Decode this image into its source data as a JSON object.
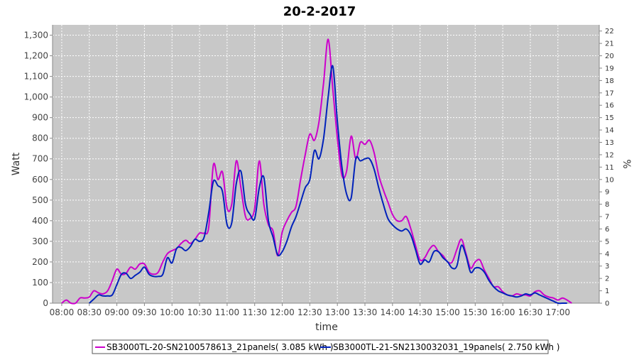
{
  "chart_data": {
    "type": "line",
    "title": "20-2-2017",
    "xlabel": "time",
    "ylabel": "Watt",
    "y2label": "%",
    "xlim": [
      "07:50",
      "17:45"
    ],
    "ylim": [
      0,
      1350
    ],
    "y2lim": [
      0,
      22.5
    ],
    "x_ticks": [
      "08:00",
      "08:30",
      "09:00",
      "09:30",
      "10:00",
      "10:30",
      "11:00",
      "11:30",
      "12:00",
      "12:30",
      "13:00",
      "13:30",
      "14:00",
      "14:30",
      "15:00",
      "15:30",
      "16:00",
      "16:30",
      "17:00"
    ],
    "y_ticks": [
      0,
      100,
      200,
      300,
      400,
      500,
      600,
      700,
      800,
      900,
      1000,
      1100,
      1200,
      1300
    ],
    "y_tick_labels": [
      "0",
      "100",
      "200",
      "300",
      "400",
      "500",
      "600",
      "700",
      "800",
      "900",
      "1,000",
      "1,100",
      "1,200",
      "1,300"
    ],
    "y2_ticks": [
      0,
      1,
      2,
      3,
      4,
      5,
      6,
      7,
      8,
      9,
      10,
      11,
      12,
      13,
      14,
      15,
      16,
      17,
      18,
      19,
      20,
      21,
      22
    ],
    "grid": true,
    "legend_position": "bottom",
    "series": [
      {
        "name": "SB3000TL-20-SN2100578613_21panels( 3.085 kWh )",
        "color": "#cc00cc",
        "x": [
          "08:00",
          "08:05",
          "08:10",
          "08:15",
          "08:20",
          "08:25",
          "08:30",
          "08:35",
          "08:40",
          "08:45",
          "08:50",
          "08:55",
          "09:00",
          "09:05",
          "09:10",
          "09:15",
          "09:20",
          "09:25",
          "09:30",
          "09:35",
          "09:40",
          "09:45",
          "09:50",
          "09:55",
          "10:00",
          "10:05",
          "10:10",
          "10:15",
          "10:20",
          "10:25",
          "10:30",
          "10:35",
          "10:40",
          "10:45",
          "10:50",
          "10:55",
          "11:00",
          "11:05",
          "11:10",
          "11:15",
          "11:20",
          "11:25",
          "11:30",
          "11:35",
          "11:40",
          "11:45",
          "11:50",
          "11:55",
          "12:00",
          "12:05",
          "12:10",
          "12:15",
          "12:20",
          "12:25",
          "12:30",
          "12:35",
          "12:40",
          "12:45",
          "12:50",
          "12:55",
          "13:00",
          "13:05",
          "13:10",
          "13:15",
          "13:20",
          "13:25",
          "13:30",
          "13:35",
          "13:40",
          "13:45",
          "13:50",
          "13:55",
          "14:00",
          "14:05",
          "14:10",
          "14:15",
          "14:20",
          "14:25",
          "14:30",
          "14:35",
          "14:40",
          "14:45",
          "14:50",
          "14:55",
          "15:00",
          "15:05",
          "15:10",
          "15:15",
          "15:20",
          "15:25",
          "15:30",
          "15:35",
          "15:40",
          "15:45",
          "15:50",
          "15:55",
          "16:00",
          "16:05",
          "16:10",
          "16:15",
          "16:20",
          "16:25",
          "16:30",
          "16:35",
          "16:40",
          "16:45",
          "16:50",
          "16:55",
          "17:00",
          "17:05",
          "17:10",
          "17:15"
        ],
        "values": [
          0,
          15,
          0,
          0,
          25,
          25,
          30,
          60,
          50,
          45,
          60,
          110,
          165,
          140,
          145,
          175,
          165,
          190,
          190,
          150,
          140,
          150,
          200,
          240,
          255,
          265,
          290,
          305,
          290,
          310,
          340,
          340,
          370,
          670,
          600,
          635,
          460,
          480,
          690,
          560,
          420,
          410,
          460,
          690,
          480,
          380,
          350,
          230,
          345,
          400,
          440,
          470,
          600,
          720,
          820,
          790,
          880,
          1070,
          1280,
          1040,
          800,
          620,
          640,
          810,
          700,
          780,
          770,
          790,
          730,
          620,
          550,
          490,
          430,
          400,
          400,
          420,
          360,
          280,
          210,
          220,
          260,
          280,
          250,
          230,
          200,
          200,
          260,
          310,
          240,
          170,
          200,
          210,
          160,
          120,
          80,
          80,
          55,
          40,
          35,
          45,
          40,
          40,
          35,
          55,
          60,
          40,
          30,
          25,
          15,
          25,
          15,
          0
        ],
        "pct": [
          0,
          0.3,
          0,
          0,
          0.4,
          0.4,
          0.5,
          1,
          0.8,
          0.8,
          1,
          1.8,
          2.7,
          2.3,
          2.4,
          2.9,
          2.7,
          3.1,
          3.1,
          2.5,
          2.3,
          2.5,
          3.3,
          3.9,
          4.2,
          4.3,
          4.7,
          5,
          4.7,
          5.1,
          5.6,
          5.6,
          6,
          11,
          9.8,
          10.4,
          7.5,
          7.9,
          11.3,
          9.2,
          6.9,
          6.7,
          7.5,
          11.3,
          7.9,
          6.2,
          5.7,
          3.8,
          5.7,
          6.5,
          7.2,
          7.7,
          9.8,
          11.8,
          13.4,
          12.9,
          14.4,
          17.5,
          20.9,
          17,
          13.1,
          10.1,
          10.5,
          13.2,
          11.4,
          12.7,
          12.6,
          12.9,
          11.9,
          10.1,
          9,
          8,
          7,
          6.5,
          6.5,
          6.9,
          5.9,
          4.6,
          3.4,
          3.6,
          4.3,
          4.6,
          4.1,
          3.8,
          3.3,
          3.3,
          4.3,
          5.1,
          3.9,
          2.8,
          3.3,
          3.4,
          2.6,
          2,
          1.3,
          1.3,
          0.9,
          0.7,
          0.6,
          0.7,
          0.7,
          0.7,
          0.6,
          0.9,
          1,
          0.7,
          0.5,
          0.4,
          0.3,
          0.4,
          0.3,
          0
        ]
      },
      {
        "name": "SB3000TL-21-SN2130032031_19panels( 2.750 kWh )",
        "color": "#0022bb",
        "x": [
          "08:30",
          "08:35",
          "08:40",
          "08:45",
          "08:50",
          "08:55",
          "09:00",
          "09:05",
          "09:10",
          "09:15",
          "09:20",
          "09:25",
          "09:30",
          "09:35",
          "09:40",
          "09:45",
          "09:50",
          "09:55",
          "10:00",
          "10:05",
          "10:10",
          "10:15",
          "10:20",
          "10:25",
          "10:30",
          "10:35",
          "10:40",
          "10:45",
          "10:50",
          "10:55",
          "11:00",
          "11:05",
          "11:10",
          "11:15",
          "11:20",
          "11:25",
          "11:30",
          "11:35",
          "11:40",
          "11:45",
          "11:50",
          "11:55",
          "12:00",
          "12:05",
          "12:10",
          "12:15",
          "12:20",
          "12:25",
          "12:30",
          "12:35",
          "12:40",
          "12:45",
          "12:50",
          "12:55",
          "13:00",
          "13:05",
          "13:10",
          "13:15",
          "13:20",
          "13:25",
          "13:30",
          "13:35",
          "13:40",
          "13:45",
          "13:50",
          "13:55",
          "14:00",
          "14:05",
          "14:10",
          "14:15",
          "14:20",
          "14:25",
          "14:30",
          "14:35",
          "14:40",
          "14:45",
          "14:50",
          "14:55",
          "15:00",
          "15:05",
          "15:10",
          "15:15",
          "15:20",
          "15:25",
          "15:30",
          "15:35",
          "15:40",
          "15:45",
          "15:50",
          "15:55",
          "16:00",
          "16:05",
          "16:10",
          "16:15",
          "16:20",
          "16:25",
          "16:30",
          "16:35",
          "16:40",
          "16:45",
          "16:50",
          "16:55",
          "17:00",
          "17:05",
          "17:10"
        ],
        "values": [
          0,
          20,
          40,
          35,
          35,
          40,
          90,
          140,
          145,
          120,
          135,
          150,
          175,
          140,
          130,
          130,
          140,
          220,
          195,
          265,
          270,
          255,
          275,
          310,
          300,
          320,
          440,
          590,
          570,
          540,
          380,
          390,
          580,
          640,
          480,
          430,
          410,
          560,
          610,
          400,
          320,
          235,
          250,
          300,
          370,
          420,
          490,
          560,
          600,
          740,
          700,
          800,
          1000,
          1150,
          880,
          660,
          530,
          510,
          700,
          690,
          700,
          700,
          650,
          560,
          480,
          410,
          380,
          360,
          350,
          360,
          330,
          260,
          190,
          210,
          200,
          250,
          250,
          220,
          200,
          170,
          180,
          280,
          230,
          150,
          170,
          170,
          150,
          110,
          80,
          60,
          50,
          40,
          35,
          30,
          35,
          45,
          40,
          50,
          40,
          30,
          20,
          10,
          0,
          0,
          0
        ],
        "pct": [
          0,
          0.4,
          0.7,
          0.6,
          0.6,
          0.7,
          1.6,
          2.5,
          2.6,
          2.1,
          2.4,
          2.7,
          3.1,
          2.5,
          2.3,
          2.3,
          2.5,
          3.9,
          3.5,
          4.7,
          4.8,
          4.5,
          4.9,
          5.5,
          5.3,
          5.7,
          7.8,
          10.5,
          10.1,
          9.6,
          6.7,
          6.9,
          10.3,
          11.3,
          8.5,
          7.6,
          7.3,
          9.9,
          10.8,
          7.1,
          5.7,
          4.2,
          4.4,
          5.3,
          6.6,
          7.4,
          8.7,
          9.9,
          10.6,
          13.1,
          12.4,
          14.2,
          17.7,
          20.4,
          15.6,
          11.7,
          9.4,
          9,
          12.4,
          12.2,
          12.4,
          12.4,
          11.5,
          9.9,
          8.5,
          7.3,
          6.7,
          6.4,
          6.2,
          6.4,
          5.8,
          4.6,
          3.4,
          3.7,
          3.5,
          4.4,
          4.4,
          3.9,
          3.5,
          3,
          3.2,
          5,
          4.1,
          2.7,
          3,
          3,
          2.7,
          1.9,
          1.4,
          1.1,
          0.9,
          0.7,
          0.6,
          0.5,
          0.6,
          0.8,
          0.7,
          0.9,
          0.7,
          0.5,
          0.4,
          0.2,
          0,
          0,
          0
        ]
      }
    ]
  }
}
